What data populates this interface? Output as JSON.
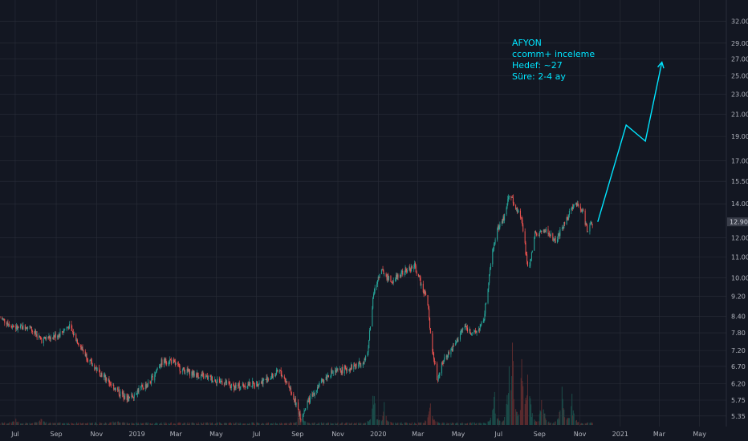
{
  "chart_data": {
    "type": "candlestick",
    "symbol": "AFYON",
    "y_scale": "log",
    "ylim": [
      5.1,
      34.5
    ],
    "y_ticks": [
      "32.00",
      "29.00",
      "27.00",
      "25.00",
      "23.00",
      "21.00",
      "19.00",
      "17.00",
      "15.50",
      "14.00",
      "12.00",
      "11.00",
      "10.00",
      "9.20",
      "8.40",
      "7.80",
      "7.20",
      "6.70",
      "6.20",
      "5.75",
      "5.35"
    ],
    "x_ticks": [
      "Jul",
      "Sep",
      "Nov",
      "2019",
      "Mar",
      "May",
      "Jul",
      "Sep",
      "Nov",
      "2020",
      "Mar",
      "May",
      "Jul",
      "Sep",
      "Nov",
      "2021",
      "Mar",
      "May"
    ],
    "x_range": [
      "2018-06-08",
      "2021-06-08"
    ],
    "last_price": "12.90",
    "colors": {
      "background": "#131722",
      "up": "#26a69a",
      "down": "#ef5350",
      "grid": "#2a2e39",
      "annotation": "#00e5ff",
      "volume_up": "#1b4d4a",
      "volume_down": "#5b2b2e"
    },
    "price_path": [
      [
        "2018-06-08",
        8.35
      ],
      [
        "2018-07-05",
        7.95
      ],
      [
        "2018-07-20",
        8.05
      ],
      [
        "2018-08-10",
        7.55
      ],
      [
        "2018-09-05",
        7.75
      ],
      [
        "2018-09-20",
        8.05
      ],
      [
        "2018-10-10",
        7.25
      ],
      [
        "2018-10-25",
        6.75
      ],
      [
        "2018-11-15",
        6.35
      ],
      [
        "2018-12-05",
        5.95
      ],
      [
        "2018-12-20",
        5.78
      ],
      [
        "2019-01-05",
        6.05
      ],
      [
        "2019-01-20",
        6.2
      ],
      [
        "2019-02-05",
        6.8
      ],
      [
        "2019-02-20",
        6.9
      ],
      [
        "2019-03-10",
        6.6
      ],
      [
        "2019-04-01",
        6.45
      ],
      [
        "2019-04-20",
        6.35
      ],
      [
        "2019-05-10",
        6.25
      ],
      [
        "2019-05-25",
        6.1
      ],
      [
        "2019-06-10",
        6.15
      ],
      [
        "2019-07-01",
        6.2
      ],
      [
        "2019-07-20",
        6.35
      ],
      [
        "2019-08-05",
        6.55
      ],
      [
        "2019-08-20",
        6.1
      ],
      [
        "2019-09-01",
        5.55
      ],
      [
        "2019-09-06",
        5.3
      ],
      [
        "2019-09-15",
        5.65
      ],
      [
        "2019-10-01",
        6.1
      ],
      [
        "2019-10-20",
        6.5
      ],
      [
        "2019-11-10",
        6.6
      ],
      [
        "2019-12-01",
        6.75
      ],
      [
        "2019-12-15",
        6.95
      ],
      [
        "2019-12-25",
        9.3
      ],
      [
        "2020-01-05",
        10.4
      ],
      [
        "2020-01-20",
        9.85
      ],
      [
        "2020-02-10",
        10.3
      ],
      [
        "2020-02-25",
        10.55
      ],
      [
        "2020-03-05",
        9.8
      ],
      [
        "2020-03-15",
        9.1
      ],
      [
        "2020-03-22",
        7.4
      ],
      [
        "2020-03-30",
        6.3
      ],
      [
        "2020-04-10",
        6.95
      ],
      [
        "2020-04-25",
        7.35
      ],
      [
        "2020-05-10",
        8.05
      ],
      [
        "2020-05-25",
        7.75
      ],
      [
        "2020-06-08",
        8.15
      ],
      [
        "2020-06-20",
        10.9
      ],
      [
        "2020-06-28",
        12.4
      ],
      [
        "2020-07-10",
        13.2
      ],
      [
        "2020-07-18",
        14.9
      ],
      [
        "2020-07-25",
        13.8
      ],
      [
        "2020-08-05",
        13.2
      ],
      [
        "2020-08-15",
        10.2
      ],
      [
        "2020-08-25",
        12.2
      ],
      [
        "2020-09-10",
        12.4
      ],
      [
        "2020-09-25",
        11.8
      ],
      [
        "2020-10-10",
        12.9
      ],
      [
        "2020-10-25",
        14.1
      ],
      [
        "2020-11-05",
        13.6
      ],
      [
        "2020-11-12",
        12.4
      ],
      [
        "2020-11-20",
        12.9
      ]
    ],
    "projection": [
      [
        "2020-11-28",
        12.9
      ],
      [
        "2021-01-10",
        20.0
      ],
      [
        "2021-02-08",
        18.6
      ],
      [
        "2021-03-05",
        26.6
      ]
    ],
    "volume_spikes": [
      [
        "2018-07-01",
        0.05
      ],
      [
        "2018-08-10",
        0.07
      ],
      [
        "2018-12-01",
        0.06
      ],
      [
        "2019-09-05",
        0.18
      ],
      [
        "2019-12-25",
        0.42
      ],
      [
        "2020-01-10",
        0.22
      ],
      [
        "2020-03-20",
        0.28
      ],
      [
        "2020-06-25",
        0.38
      ],
      [
        "2020-07-18",
        0.95
      ],
      [
        "2020-07-22",
        0.6
      ],
      [
        "2020-08-05",
        0.7
      ],
      [
        "2020-08-15",
        0.8
      ],
      [
        "2020-09-05",
        0.35
      ],
      [
        "2020-10-05",
        0.4
      ],
      [
        "2020-10-20",
        0.3
      ]
    ],
    "annotation_lines": [
      "AFYON",
      "ccomm+ inceleme",
      "Hedef: ~27",
      "Süre: 2-4 ay"
    ]
  }
}
